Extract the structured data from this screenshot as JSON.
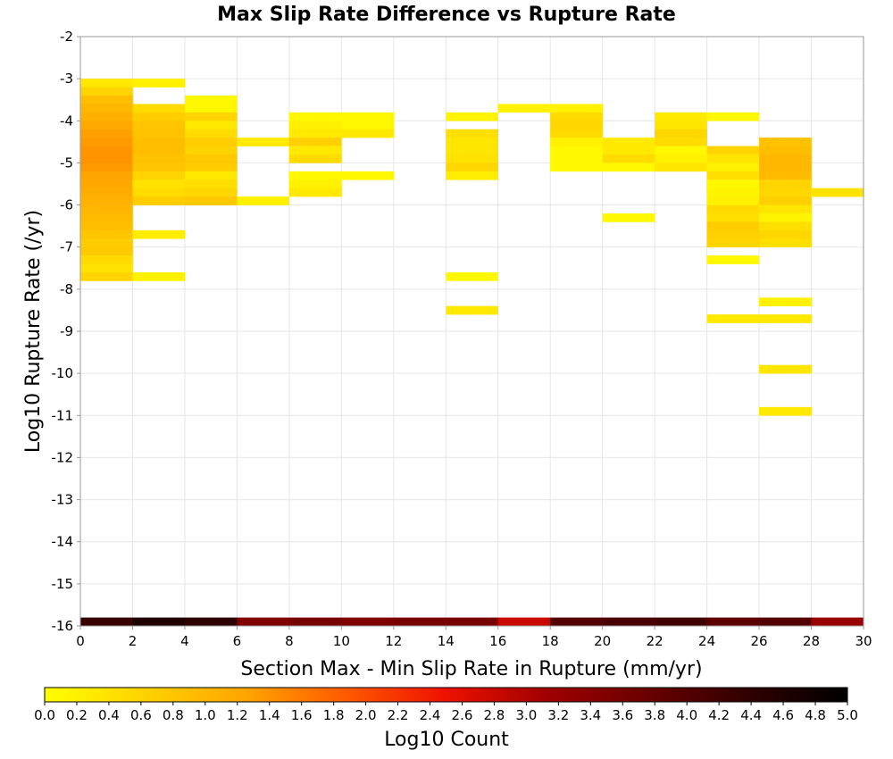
{
  "chart_data": {
    "type": "heatmap",
    "title": "Max Slip Rate Difference vs Rupture Rate",
    "xlabel": "Section Max - Min Slip Rate in Rupture (mm/yr)",
    "ylabel": "Log10 Rupture Rate (/yr)",
    "xlim": [
      0,
      30
    ],
    "ylim": [
      -16,
      -2
    ],
    "x_ticks": [
      "0",
      "2",
      "4",
      "6",
      "8",
      "10",
      "12",
      "14",
      "16",
      "18",
      "20",
      "22",
      "24",
      "26",
      "28",
      "30"
    ],
    "y_ticks": [
      "-2",
      "-3",
      "-4",
      "-5",
      "-6",
      "-7",
      "-8",
      "-9",
      "-10",
      "-11",
      "-12",
      "-13",
      "-14",
      "-15",
      "-16"
    ],
    "x_bin_width": 2,
    "y_bin_height": 0.2,
    "grid": true,
    "colorbar": {
      "label": "Log10 Count",
      "min": 0,
      "max": 5,
      "ticks": [
        "0.0",
        "0.2",
        "0.4",
        "0.6",
        "0.8",
        "1.0",
        "1.2",
        "1.4",
        "1.6",
        "1.8",
        "2.0",
        "2.2",
        "2.4",
        "2.6",
        "2.8",
        "3.0",
        "3.2",
        "3.4",
        "3.6",
        "3.8",
        "4.0",
        "4.2",
        "4.4",
        "4.6",
        "4.8",
        "5.0"
      ],
      "colors": [
        "#ffff00",
        "#ffd200",
        "#ffa500",
        "#ff5a00",
        "#ee1100",
        "#a00000",
        "#6a0000",
        "#300000",
        "#000000"
      ]
    },
    "cells": [
      [
        0,
        -3.2,
        0.3
      ],
      [
        0,
        -3.4,
        0.6
      ],
      [
        0,
        -3.6,
        0.9
      ],
      [
        0,
        -3.8,
        1.0
      ],
      [
        0,
        -4.0,
        1.1
      ],
      [
        0,
        -4.2,
        1.2
      ],
      [
        0,
        -4.4,
        1.3
      ],
      [
        0,
        -4.6,
        1.35
      ],
      [
        0,
        -4.8,
        1.4
      ],
      [
        0,
        -5.0,
        1.4
      ],
      [
        0,
        -5.2,
        1.35
      ],
      [
        0,
        -5.4,
        1.25
      ],
      [
        0,
        -5.6,
        1.2
      ],
      [
        0,
        -5.8,
        1.15
      ],
      [
        0,
        -6.0,
        1.1
      ],
      [
        0,
        -6.2,
        1.0
      ],
      [
        0,
        -6.4,
        0.95
      ],
      [
        0,
        -6.6,
        0.9
      ],
      [
        0,
        -6.8,
        0.8
      ],
      [
        0,
        -7.0,
        0.7
      ],
      [
        0,
        -7.2,
        0.75
      ],
      [
        0,
        -7.4,
        0.5
      ],
      [
        0,
        -7.6,
        0.4
      ],
      [
        0,
        -7.8,
        0.6
      ],
      [
        2,
        -3.2,
        0.2
      ],
      [
        2,
        -3.8,
        0.5
      ],
      [
        2,
        -4.0,
        0.7
      ],
      [
        2,
        -4.2,
        0.8
      ],
      [
        2,
        -4.4,
        0.85
      ],
      [
        2,
        -4.6,
        0.9
      ],
      [
        2,
        -4.8,
        0.9
      ],
      [
        2,
        -5.0,
        0.85
      ],
      [
        2,
        -5.2,
        0.8
      ],
      [
        2,
        -5.4,
        0.6
      ],
      [
        2,
        -5.6,
        0.4
      ],
      [
        2,
        -5.8,
        0.5
      ],
      [
        2,
        -6.0,
        0.7
      ],
      [
        2,
        -6.8,
        0.25
      ],
      [
        2,
        -7.8,
        0.2
      ],
      [
        4,
        -3.6,
        0.1
      ],
      [
        4,
        -3.8,
        0.1
      ],
      [
        4,
        -4.0,
        0.6
      ],
      [
        4,
        -4.2,
        0.3
      ],
      [
        4,
        -4.4,
        0.5
      ],
      [
        4,
        -4.6,
        0.7
      ],
      [
        4,
        -4.8,
        0.6
      ],
      [
        4,
        -5.0,
        0.75
      ],
      [
        4,
        -5.2,
        0.7
      ],
      [
        4,
        -5.4,
        0.3
      ],
      [
        4,
        -5.6,
        0.45
      ],
      [
        4,
        -5.8,
        0.55
      ],
      [
        4,
        -6.0,
        0.75
      ],
      [
        6,
        -4.6,
        0.3
      ],
      [
        6,
        -6.0,
        0.2
      ],
      [
        8,
        -4.0,
        0.1
      ],
      [
        8,
        -4.2,
        0.2
      ],
      [
        8,
        -4.4,
        0.3
      ],
      [
        8,
        -4.6,
        0.65
      ],
      [
        8,
        -4.8,
        0.3
      ],
      [
        8,
        -5.0,
        0.5
      ],
      [
        8,
        -5.4,
        0.1
      ],
      [
        8,
        -5.6,
        0.2
      ],
      [
        8,
        -5.8,
        0.3
      ],
      [
        10,
        -4.0,
        0.1
      ],
      [
        10,
        -4.2,
        0.1
      ],
      [
        10,
        -4.4,
        0.3
      ],
      [
        10,
        -5.4,
        0.1
      ],
      [
        14,
        -4.0,
        0.15
      ],
      [
        14,
        -4.4,
        0.45
      ],
      [
        14,
        -4.6,
        0.35
      ],
      [
        14,
        -4.8,
        0.35
      ],
      [
        14,
        -5.0,
        0.4
      ],
      [
        14,
        -5.2,
        0.55
      ],
      [
        14,
        -5.4,
        0.25
      ],
      [
        14,
        -7.8,
        0.1
      ],
      [
        14,
        -8.6,
        0.3
      ],
      [
        16,
        -3.8,
        0.2
      ],
      [
        18,
        -3.8,
        0.2
      ],
      [
        18,
        -4.0,
        0.5
      ],
      [
        18,
        -4.2,
        0.55
      ],
      [
        18,
        -4.4,
        0.5
      ],
      [
        18,
        -4.6,
        0.2
      ],
      [
        18,
        -4.8,
        0.1
      ],
      [
        18,
        -5.0,
        0.1
      ],
      [
        18,
        -5.2,
        0.1
      ],
      [
        20,
        -4.6,
        0.3
      ],
      [
        20,
        -4.8,
        0.3
      ],
      [
        20,
        -5.0,
        0.5
      ],
      [
        20,
        -5.2,
        0.1
      ],
      [
        20,
        -6.4,
        0.1
      ],
      [
        22,
        -4.0,
        0.3
      ],
      [
        22,
        -4.2,
        0.35
      ],
      [
        22,
        -4.4,
        0.55
      ],
      [
        22,
        -4.6,
        0.5
      ],
      [
        22,
        -4.8,
        0.1
      ],
      [
        22,
        -5.0,
        0.2
      ],
      [
        22,
        -5.2,
        0.35
      ],
      [
        24,
        -4.0,
        0.1
      ],
      [
        24,
        -4.8,
        0.6
      ],
      [
        24,
        -5.0,
        0.35
      ],
      [
        24,
        -5.2,
        0.2
      ],
      [
        24,
        -5.4,
        0.45
      ],
      [
        24,
        -5.6,
        0.1
      ],
      [
        24,
        -5.8,
        0.15
      ],
      [
        24,
        -6.0,
        0.2
      ],
      [
        24,
        -6.2,
        0.5
      ],
      [
        24,
        -6.4,
        0.45
      ],
      [
        24,
        -6.6,
        0.7
      ],
      [
        24,
        -6.8,
        0.65
      ],
      [
        24,
        -7.0,
        0.6
      ],
      [
        24,
        -7.4,
        0.1
      ],
      [
        24,
        -8.8,
        0.3
      ],
      [
        26,
        -4.6,
        0.85
      ],
      [
        26,
        -4.8,
        0.9
      ],
      [
        26,
        -5.0,
        1.0
      ],
      [
        26,
        -5.2,
        1.0
      ],
      [
        26,
        -5.4,
        0.95
      ],
      [
        26,
        -5.6,
        0.6
      ],
      [
        26,
        -5.8,
        0.55
      ],
      [
        26,
        -6.0,
        0.65
      ],
      [
        26,
        -6.2,
        0.35
      ],
      [
        26,
        -6.4,
        0.15
      ],
      [
        26,
        -6.6,
        0.45
      ],
      [
        26,
        -6.8,
        0.55
      ],
      [
        26,
        -7.0,
        0.45
      ],
      [
        26,
        -8.4,
        0.2
      ],
      [
        26,
        -8.8,
        0.3
      ],
      [
        26,
        -10.0,
        0.35
      ],
      [
        26,
        -11.0,
        0.3
      ],
      [
        28,
        -5.8,
        0.4
      ]
    ],
    "marginal_row": {
      "y_range": [
        -16,
        -15.8
      ],
      "values": [
        4.3,
        4.6,
        4.4,
        3.5,
        3.6,
        3.5,
        3.6,
        3.6,
        2.8,
        4.0,
        4.1,
        4.2,
        3.9,
        4.0,
        3.2
      ]
    }
  }
}
